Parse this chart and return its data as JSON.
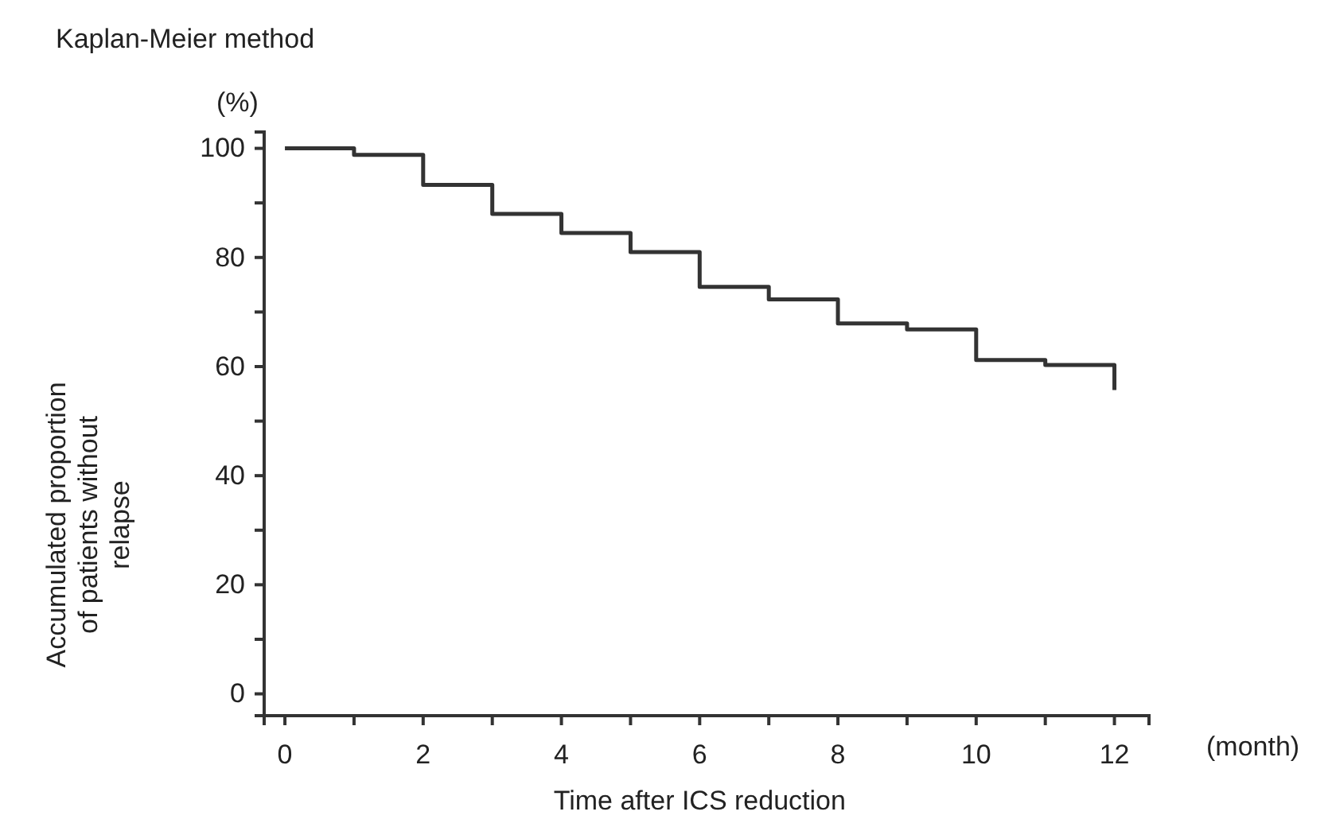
{
  "chart_data": {
    "type": "step",
    "title": "Kaplan-Meier method",
    "xlabel": "Time after ICS reduction",
    "ylabel": "Accumulated proportion of patients without relapse",
    "annotations": [
      "(%)",
      "(month)"
    ],
    "x": [
      0,
      1,
      2,
      3,
      4,
      5,
      6,
      7,
      8,
      9,
      10,
      11,
      12
    ],
    "series": [
      {
        "color": "#333333",
        "values": [
          100,
          98.8,
          93.3,
          88,
          84.5,
          81,
          74.6,
          72.3,
          67.9,
          66.8,
          61.2,
          60.3,
          55.7
        ]
      }
    ],
    "xlim": [
      -0.3,
      12.5
    ],
    "xticks": [
      0,
      {
        "value": 1,
        "label": null
      },
      2,
      {
        "value": 3,
        "label": null
      },
      4,
      {
        "value": 5,
        "label": null
      },
      6,
      {
        "value": 7,
        "label": null
      },
      8,
      {
        "value": 9,
        "label": null
      },
      10,
      {
        "value": 11,
        "label": null
      },
      12
    ],
    "ylim": [
      -4,
      103
    ],
    "yticks": [
      0,
      {
        "value": 10,
        "label": null
      },
      20,
      {
        "value": 30,
        "label": null
      },
      40,
      {
        "value": 50,
        "label": null
      },
      60,
      {
        "value": 70,
        "label": null
      },
      80,
      {
        "value": 90,
        "label": null
      },
      100
    ],
    "grid": false,
    "marker": "none",
    "line_style": "solid"
  }
}
